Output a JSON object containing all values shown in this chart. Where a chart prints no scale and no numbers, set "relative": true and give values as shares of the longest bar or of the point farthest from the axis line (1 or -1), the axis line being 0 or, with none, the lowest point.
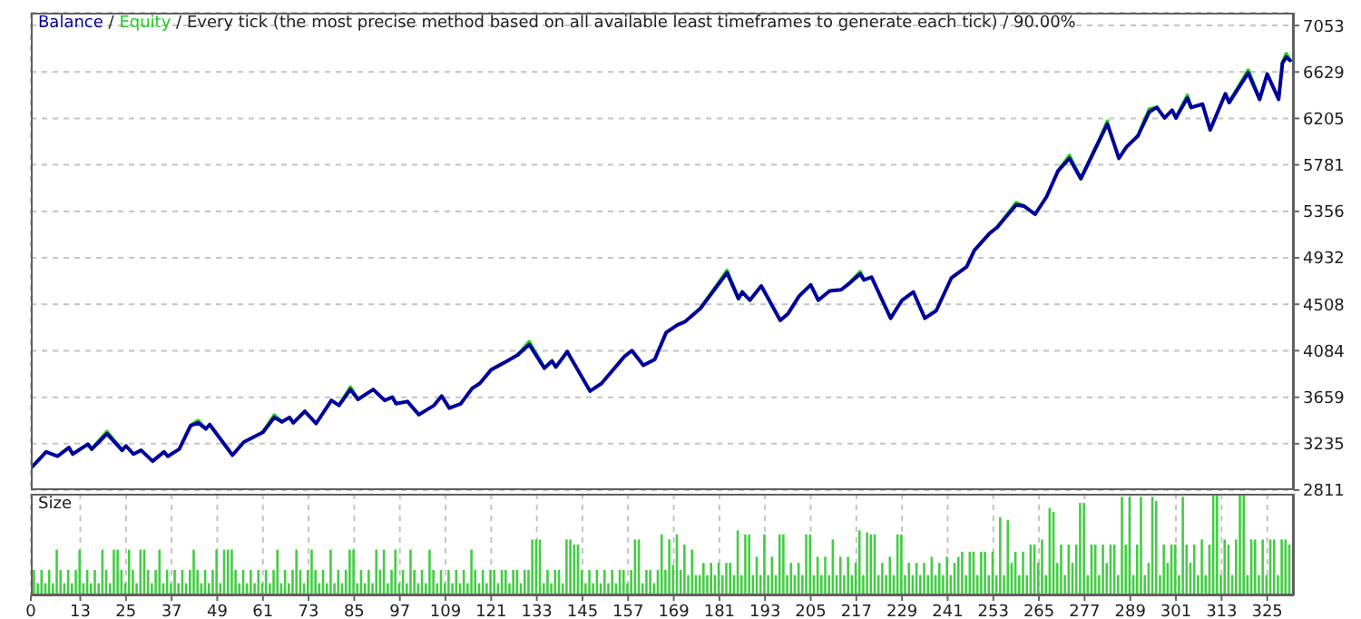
{
  "chart_data": [
    {
      "type": "line",
      "annotations": [
        "/"
      ],
      "title": "/ Every tick (the most precise method based on all available least timeframes to generate each tick) / 90.00%",
      "legend": "top left",
      "grid": true,
      "tick_labels": "y",
      "xlim": [
        0,
        332
      ],
      "xticks": [
        0,
        13,
        25,
        37,
        49,
        61,
        73,
        85,
        97,
        109,
        121,
        133,
        145,
        157,
        169,
        181,
        193,
        205,
        217,
        229,
        241,
        253,
        265,
        277,
        289,
        301,
        313,
        325
      ],
      "ylim": [
        2811,
        7170
      ],
      "yticks": [
        2811,
        3235,
        3659,
        4084,
        4508,
        4932,
        5356,
        5781,
        6205,
        6629,
        7053
      ],
      "x": [
        0,
        4,
        7,
        10,
        11,
        15,
        16,
        20,
        24,
        25,
        27,
        29,
        32,
        35,
        36,
        39,
        42,
        44,
        46,
        47,
        53,
        56,
        61,
        64,
        66,
        68,
        69,
        72,
        75,
        79,
        81,
        84,
        86,
        90,
        93,
        95,
        96,
        99,
        102,
        106,
        108,
        110,
        113,
        116,
        118,
        121,
        125,
        128,
        131,
        135,
        137,
        138,
        141,
        147,
        150,
        156,
        158,
        161,
        164,
        167,
        170,
        172,
        176,
        183,
        186,
        187,
        189,
        192,
        197,
        199,
        202,
        205,
        207,
        210,
        213,
        215,
        218,
        219,
        221,
        226,
        229,
        232,
        235,
        238,
        242,
        246,
        248,
        252,
        254,
        259,
        261,
        264,
        267,
        270,
        273,
        276,
        281,
        283,
        286,
        288,
        291,
        294,
        296,
        298,
        300,
        301,
        304,
        305,
        308,
        310,
        314,
        315,
        320,
        323,
        325,
        328,
        329,
        330,
        331
      ],
      "series": [
        {
          "name": "Balance",
          "color": "#00009c",
          "values": [
            3010,
            3160,
            3120,
            3200,
            3140,
            3230,
            3185,
            3325,
            3175,
            3215,
            3140,
            3175,
            3075,
            3160,
            3120,
            3185,
            3400,
            3425,
            3370,
            3410,
            3130,
            3250,
            3340,
            3475,
            3435,
            3475,
            3425,
            3530,
            3420,
            3630,
            3585,
            3730,
            3640,
            3730,
            3630,
            3660,
            3600,
            3620,
            3500,
            3585,
            3670,
            3560,
            3600,
            3740,
            3785,
            3910,
            3985,
            4045,
            4140,
            3925,
            3990,
            3935,
            4075,
            3715,
            3785,
            4030,
            4085,
            3950,
            4005,
            4250,
            4320,
            4350,
            4470,
            4795,
            4560,
            4620,
            4545,
            4675,
            4360,
            4420,
            4585,
            4685,
            4545,
            4630,
            4640,
            4695,
            4785,
            4730,
            4755,
            4380,
            4545,
            4620,
            4380,
            4450,
            4750,
            4850,
            5000,
            5155,
            5210,
            5415,
            5405,
            5330,
            5490,
            5725,
            5840,
            5655,
            6015,
            6155,
            5840,
            5945,
            6045,
            6265,
            6305,
            6210,
            6280,
            6210,
            6390,
            6305,
            6335,
            6100,
            6430,
            6350,
            6620,
            6380,
            6610,
            6380,
            6710,
            6765,
            6735
          ]
        },
        {
          "name": "Equity",
          "color": "#22cc22",
          "values": [
            null,
            null,
            null,
            null,
            null,
            null,
            3185,
            3345,
            3175,
            null,
            null,
            null,
            null,
            null,
            null,
            null,
            3400,
            3445,
            3370,
            null,
            null,
            null,
            3340,
            3495,
            3435,
            null,
            null,
            null,
            null,
            null,
            3585,
            3750,
            3640,
            null,
            null,
            null,
            null,
            null,
            null,
            null,
            null,
            null,
            null,
            null,
            null,
            null,
            null,
            4045,
            4165,
            3925,
            null,
            null,
            null,
            null,
            null,
            null,
            null,
            null,
            null,
            null,
            null,
            null,
            4470,
            4815,
            4560,
            null,
            null,
            null,
            null,
            null,
            null,
            null,
            null,
            null,
            null,
            4695,
            4805,
            4730,
            null,
            null,
            null,
            null,
            null,
            null,
            null,
            null,
            null,
            null,
            5210,
            5435,
            5405,
            null,
            null,
            5725,
            5865,
            5655,
            6015,
            6180,
            null,
            null,
            6045,
            6290,
            6305,
            null,
            null,
            6210,
            6415,
            6305,
            null,
            null,
            null,
            6350,
            6645,
            6380,
            null,
            null,
            6710,
            6795,
            6735
          ]
        }
      ]
    },
    {
      "type": "bar",
      "title": "Size",
      "relative": true,
      "grid": "x",
      "tick_labels": "x",
      "xlim": [
        0,
        332
      ],
      "xticks": [
        0,
        13,
        25,
        37,
        49,
        61,
        73,
        85,
        97,
        109,
        121,
        133,
        145,
        157,
        169,
        181,
        193,
        205,
        217,
        229,
        241,
        253,
        265,
        277,
        289,
        301,
        313,
        325
      ],
      "color": "#44cc44",
      "x": [
        1,
        2,
        3,
        4,
        5,
        6,
        7,
        8,
        9,
        10,
        11,
        12,
        13,
        14,
        15,
        16,
        17,
        18,
        19,
        20,
        21,
        22,
        23,
        24,
        25,
        26,
        27,
        28,
        29,
        30,
        31,
        32,
        33,
        34,
        35,
        36,
        37,
        38,
        39,
        40,
        41,
        42,
        43,
        44,
        45,
        46,
        47,
        48,
        49,
        50,
        51,
        52,
        53,
        54,
        55,
        56,
        57,
        58,
        59,
        60,
        61,
        62,
        63,
        64,
        65,
        66,
        67,
        68,
        69,
        70,
        71,
        72,
        73,
        74,
        75,
        76,
        77,
        78,
        79,
        80,
        81,
        82,
        83,
        84,
        85,
        86,
        87,
        88,
        89,
        90,
        91,
        92,
        93,
        94,
        95,
        96,
        97,
        98,
        99,
        100,
        101,
        102,
        103,
        104,
        105,
        106,
        107,
        108,
        109,
        110,
        111,
        112,
        113,
        114,
        115,
        116,
        117,
        118,
        119,
        120,
        121,
        122,
        123,
        124,
        125,
        126,
        127,
        128,
        129,
        130,
        131,
        132,
        133,
        134,
        135,
        136,
        137,
        138,
        139,
        140,
        141,
        142,
        143,
        144,
        145,
        146,
        147,
        148,
        149,
        150,
        151,
        152,
        153,
        154,
        155,
        156,
        157,
        158,
        159,
        160,
        161,
        162,
        163,
        164,
        165,
        166,
        167,
        168,
        169,
        170,
        171,
        172,
        173,
        174,
        175,
        176,
        177,
        178,
        179,
        180,
        181,
        182,
        183,
        184,
        185,
        186,
        187,
        188,
        189,
        190,
        191,
        192,
        193,
        194,
        195,
        196,
        197,
        198,
        199,
        200,
        201,
        202,
        203,
        204,
        205,
        206,
        207,
        208,
        209,
        210,
        211,
        212,
        213,
        214,
        215,
        216,
        217,
        218,
        219,
        220,
        221,
        222,
        223,
        224,
        225,
        226,
        227,
        228,
        229,
        230,
        231,
        232,
        233,
        234,
        235,
        236,
        237,
        238,
        239,
        240,
        241,
        242,
        243,
        244,
        245,
        246,
        247,
        248,
        249,
        250,
        251,
        252,
        253,
        254,
        255,
        256,
        257,
        258,
        259,
        260,
        261,
        262,
        263,
        264,
        265,
        266,
        267,
        268,
        269,
        270,
        271,
        272,
        273,
        274,
        275,
        276,
        277,
        278,
        279,
        280,
        281,
        282,
        283,
        284,
        285,
        286,
        287,
        288,
        289,
        290,
        291,
        292,
        293,
        294,
        295,
        296,
        297,
        298,
        299,
        300,
        301,
        302,
        303,
        304,
        305,
        306,
        307,
        308,
        309,
        310,
        311,
        312,
        313,
        314,
        315,
        316,
        317,
        318,
        319,
        320,
        321,
        322,
        323,
        324,
        325,
        326,
        327,
        328,
        329,
        330,
        331
      ],
      "values": [
        0.25,
        0.12,
        0.25,
        0.12,
        0.25,
        0.12,
        0.45,
        0.25,
        0.12,
        0.25,
        0.12,
        0.25,
        0.45,
        0.12,
        0.25,
        0.12,
        0.25,
        0.12,
        0.45,
        0.25,
        0.12,
        0.45,
        0.45,
        0.25,
        0.12,
        0.45,
        0.25,
        0.12,
        0.45,
        0.45,
        0.25,
        0.12,
        0.25,
        0.45,
        0.12,
        0.25,
        0.12,
        0.25,
        0.12,
        0.25,
        0.12,
        0.25,
        0.45,
        0.25,
        0.12,
        0.25,
        0.12,
        0.25,
        0.45,
        0.12,
        0.45,
        0.45,
        0.45,
        0.25,
        0.12,
        0.25,
        0.12,
        0.25,
        0.12,
        0.25,
        0.12,
        0.25,
        0.12,
        0.25,
        0.45,
        0.12,
        0.25,
        0.12,
        0.25,
        0.45,
        0.25,
        0.12,
        0.25,
        0.45,
        0.25,
        0.12,
        0.25,
        0.12,
        0.45,
        0.12,
        0.25,
        0.12,
        0.25,
        0.45,
        0.45,
        0.12,
        0.25,
        0.12,
        0.25,
        0.12,
        0.45,
        0.25,
        0.45,
        0.12,
        0.25,
        0.45,
        0.12,
        0.25,
        0.12,
        0.45,
        0.25,
        0.12,
        0.25,
        0.12,
        0.45,
        0.25,
        0.12,
        0.25,
        0.12,
        0.25,
        0.12,
        0.25,
        0.12,
        0.25,
        0.12,
        0.45,
        0.25,
        0.12,
        0.25,
        0.12,
        0.25,
        0.25,
        0.12,
        0.25,
        0.25,
        0.12,
        0.25,
        0.25,
        0.12,
        0.25,
        0.25,
        0.55,
        0.55,
        0.55,
        0.12,
        0.25,
        0.12,
        0.25,
        0.25,
        0.12,
        0.55,
        0.55,
        0.5,
        0.5,
        0.25,
        0.12,
        0.25,
        0.12,
        0.25,
        0.12,
        0.25,
        0.12,
        0.25,
        0.12,
        0.25,
        0.25,
        0.12,
        0.25,
        0.55,
        0.55,
        0.12,
        0.25,
        0.25,
        0.12,
        0.25,
        0.6,
        0.25,
        0.55,
        0.3,
        0.6,
        0.25,
        0.5,
        0.2,
        0.45,
        0.2,
        0.2,
        0.32,
        0.2,
        0.32,
        0.2,
        0.32,
        0.2,
        0.32,
        0.32,
        0.2,
        0.64,
        0.2,
        0.6,
        0.6,
        0.2,
        0.38,
        0.2,
        0.6,
        0.2,
        0.38,
        0.2,
        0.6,
        0.6,
        0.2,
        0.32,
        0.2,
        0.32,
        0.2,
        0.6,
        0.6,
        0.2,
        0.38,
        0.2,
        0.38,
        0.2,
        0.55,
        0.2,
        0.38,
        0.2,
        0.38,
        0.2,
        0.32,
        0.64,
        0.2,
        0.62,
        0.6,
        0.6,
        0.2,
        0.32,
        0.2,
        0.38,
        0.2,
        0.6,
        0.6,
        0.2,
        0.32,
        0.2,
        0.32,
        0.2,
        0.32,
        0.2,
        0.38,
        0.2,
        0.32,
        0.2,
        0.38,
        0.2,
        0.32,
        0.38,
        0.43,
        0.2,
        0.43,
        0.43,
        0.2,
        0.43,
        0.43,
        0.2,
        0.43,
        0.2,
        0.77,
        0.2,
        0.74,
        0.32,
        0.43,
        0.2,
        0.43,
        0.2,
        0.5,
        0.5,
        0.32,
        0.55,
        0.2,
        0.86,
        0.82,
        0.32,
        0.5,
        0.2,
        0.5,
        0.32,
        0.5,
        0.91,
        0.91,
        0.2,
        0.5,
        0.5,
        0.2,
        0.5,
        0.32,
        0.5,
        0.5,
        0.2,
        0.97,
        0.5,
        0.97,
        0.2,
        0.5,
        0.97,
        0.2,
        0.32,
        0.97,
        0.93,
        0.2,
        0.5,
        0.32,
        0.5,
        0.5,
        0.2,
        0.97,
        0.5,
        0.32,
        0.5,
        0.2,
        0.55,
        0.2,
        0.5,
        1,
        0.99,
        0.2,
        0.55,
        0.5,
        0.2,
        0.55,
        1,
        1,
        0.2,
        0.55,
        0.55,
        0.2,
        0.55,
        0.2,
        0.55,
        0.55,
        0.2,
        0.55,
        0.55,
        0.5
      ]
    }
  ]
}
